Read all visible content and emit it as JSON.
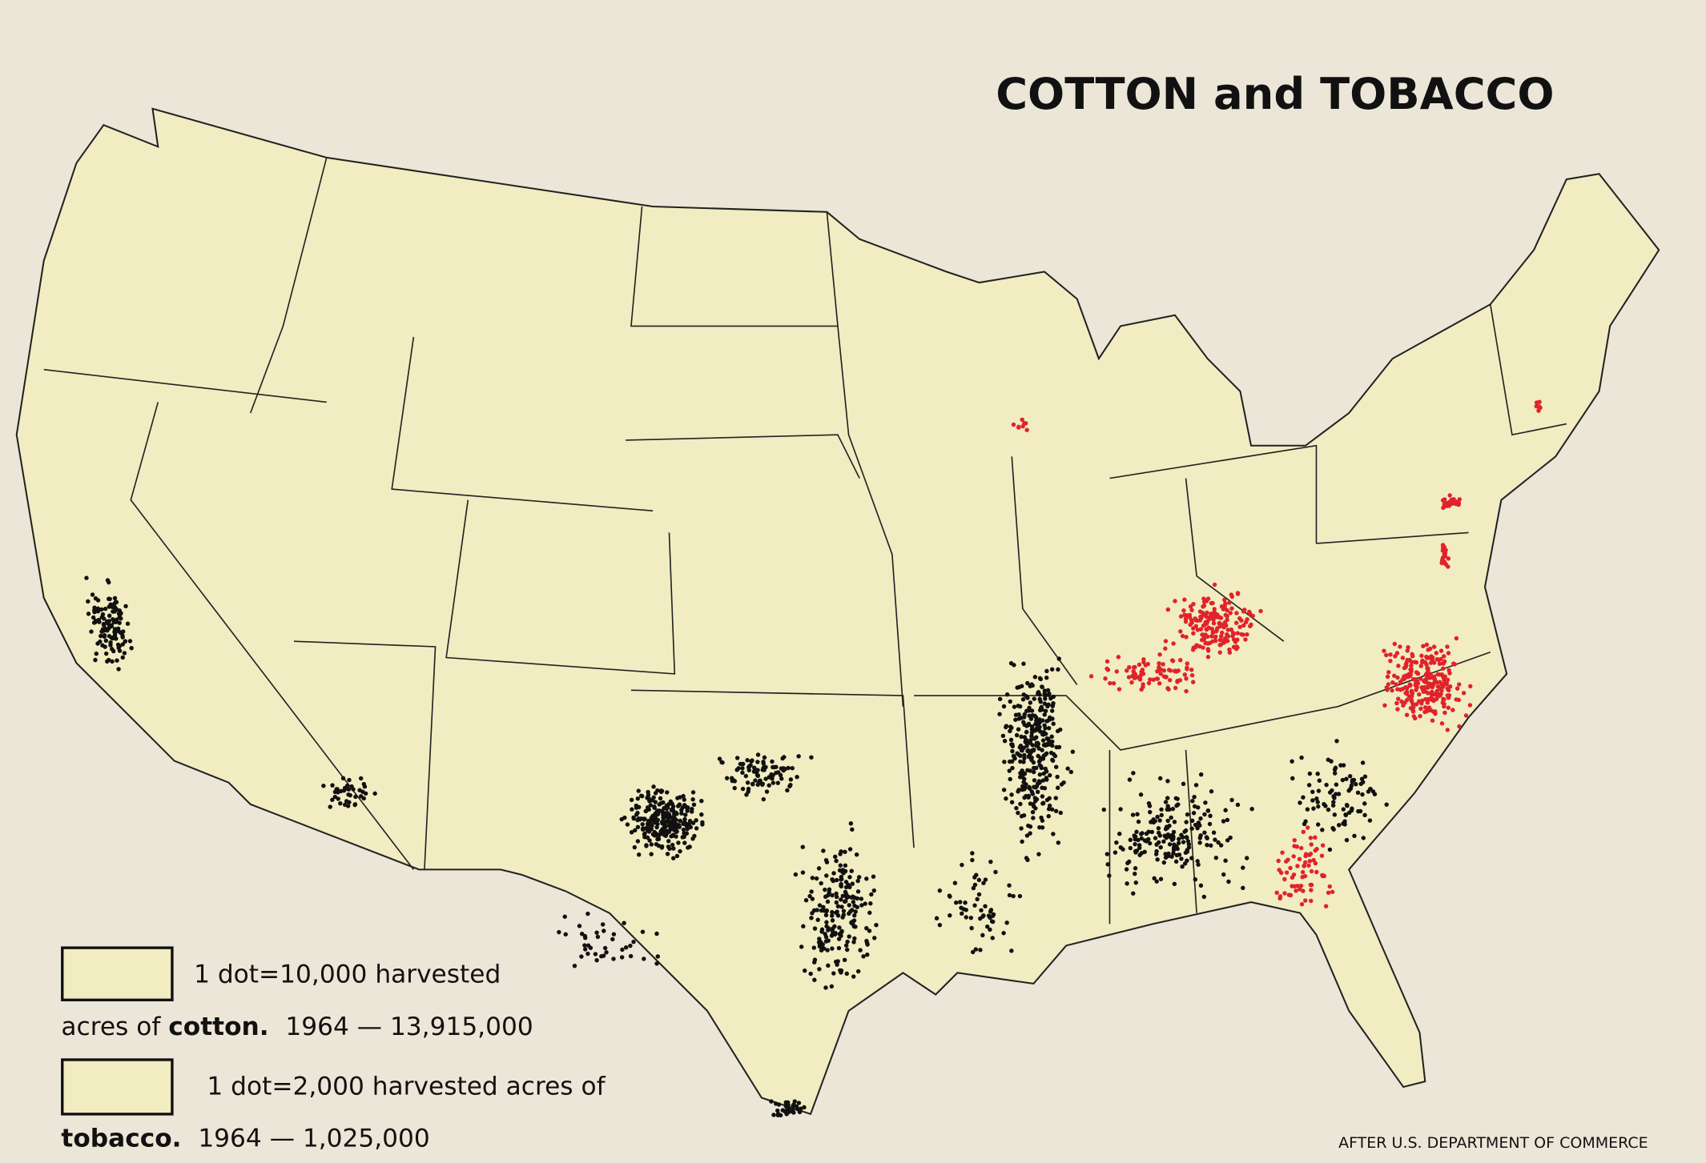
{
  "title": "COTTON and TOBACCO",
  "legend": [
    {
      "line1": "1 dot=10,000 harvested",
      "prefix": "acres of",
      "crop": "cotton.",
      "total": "1964 — 13,915,000"
    },
    {
      "line1": "1 dot=2,000 harvested acres of",
      "crop": "tobacco.",
      "total": "1964 — 1,025,000"
    }
  ],
  "credit": "AFTER U.S. DEPARTMENT OF COMMERCE"
}
